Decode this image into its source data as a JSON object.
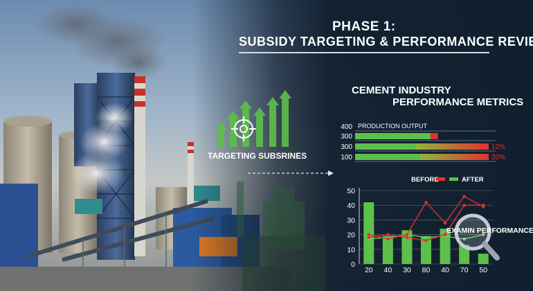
{
  "title_line1": "PHASE 1:",
  "title_line2": "SUBSIDY TARGETING & PERFORMANCE REVIEW",
  "subtitle_line1": "CEMENT INDUSTRY",
  "subtitle_line2": "PERFORMANCE METRICS",
  "targeting_label": "TARGETING SUBSRINES",
  "colors": {
    "bar_green": "#5cc04a",
    "bar_red": "#e0322f",
    "line_red": "#e2302e",
    "accent_green": "#7ee36a"
  },
  "chart_data": [
    {
      "type": "bar",
      "orientation": "horizontal",
      "title": "PRODUCTION OUTPUT",
      "categories": [
        "400",
        "300",
        "300",
        "100"
      ],
      "series": [
        {
          "values": [
            0,
            62,
            100,
            100
          ]
        }
      ],
      "red_segment_fraction": [
        0,
        0.09,
        0.55,
        0.52
      ],
      "data_labels": [
        "",
        "",
        "12%",
        "20%"
      ]
    },
    {
      "type": "bar",
      "legend": [
        "BEFORE",
        "AFTER"
      ],
      "legend_position": "top",
      "categories": [
        "20",
        "40",
        "30",
        "80",
        "40",
        "70",
        "50"
      ],
      "y_ticks": [
        0,
        10,
        20,
        30,
        40,
        50
      ],
      "ylim": [
        0,
        50
      ],
      "grid": true,
      "bar_values": [
        42,
        19,
        23,
        19,
        24,
        13,
        7
      ],
      "red_line_a": [
        20,
        17,
        20,
        42,
        28,
        46,
        39
      ],
      "red_line_b": [
        18,
        20,
        18,
        16,
        20,
        40,
        40
      ],
      "green_line": [
        17,
        18,
        20,
        18,
        19,
        17,
        20
      ],
      "annotation": "EXAMIN PERFORMANCE"
    }
  ]
}
